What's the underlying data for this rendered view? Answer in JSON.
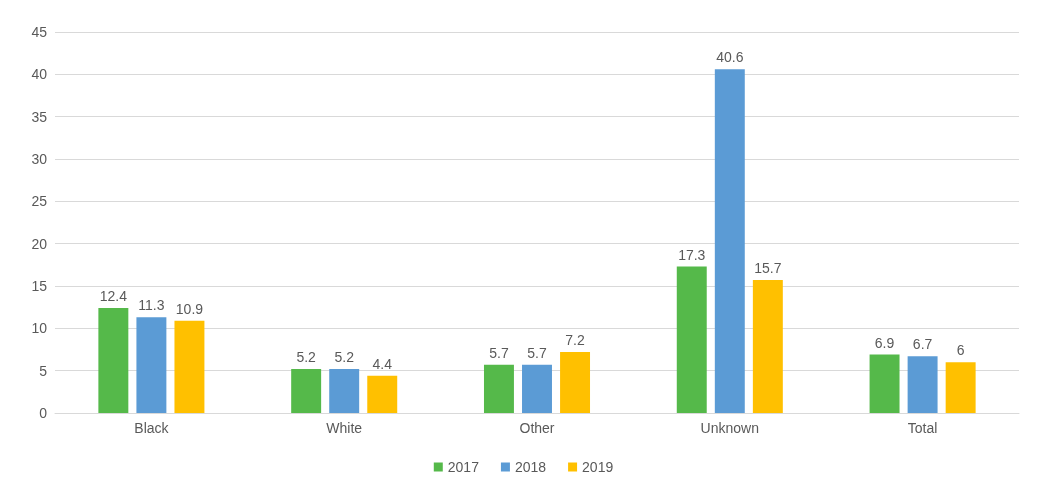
{
  "chart_data": {
    "type": "bar",
    "categories": [
      "Black",
      "White",
      "Other",
      "Unknown",
      "Total"
    ],
    "series": [
      {
        "name": "2017",
        "color": "#55b94a",
        "values": [
          12.4,
          5.2,
          5.7,
          17.3,
          6.9
        ]
      },
      {
        "name": "2018",
        "color": "#5b9bd5",
        "values": [
          11.3,
          5.2,
          5.7,
          40.6,
          6.7
        ]
      },
      {
        "name": "2019",
        "color": "#ffc000",
        "values": [
          10.9,
          4.4,
          7.2,
          15.7,
          6
        ]
      }
    ],
    "ylim": [
      0,
      45
    ],
    "yticks": [
      0,
      5,
      10,
      15,
      20,
      25,
      30,
      35,
      40,
      45
    ],
    "grid": "y",
    "legend": "bottom",
    "data_labels": true
  }
}
